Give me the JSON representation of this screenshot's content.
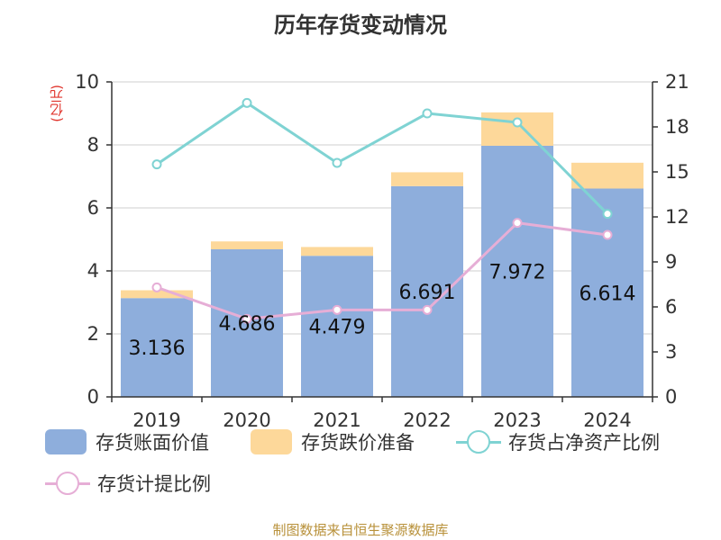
{
  "title": "历年存货变动情况",
  "unit_label": "(亿元)",
  "source": "制图数据来自恒生聚源数据库",
  "colors": {
    "book_value": "#8eaedc",
    "impairment": "#fdd89a",
    "ratio_net_assets": "#7fd3d3",
    "provision_ratio": "#e6aed6",
    "unit_text": "#e0342c",
    "source_text": "#b8913a"
  },
  "legend": [
    {
      "label": "存货账面价值",
      "kind": "swatch",
      "color_key": "book_value"
    },
    {
      "label": "存货跌价准备",
      "kind": "swatch",
      "color_key": "impairment"
    },
    {
      "label": "存货占净资产比例",
      "kind": "line",
      "color_key": "ratio_net_assets"
    },
    {
      "label": "存货计提比例",
      "kind": "line",
      "color_key": "provision_ratio"
    }
  ],
  "chart_data": {
    "type": "bar",
    "categories": [
      "2019",
      "2020",
      "2021",
      "2022",
      "2023",
      "2024"
    ],
    "y_left": {
      "min": 0,
      "max": 10,
      "ticks": [
        0,
        2,
        4,
        6,
        8,
        10
      ]
    },
    "y_right": {
      "min": 0,
      "max": 21,
      "ticks": [
        0,
        3,
        6,
        9,
        12,
        15,
        18,
        21
      ]
    },
    "grid": true,
    "bar_series": [
      {
        "name": "存货账面价值",
        "values": [
          3.136,
          4.686,
          4.479,
          6.691,
          7.972,
          6.614
        ],
        "labels": [
          "3.136",
          "4.686",
          "4.479",
          "6.691",
          "7.972",
          "6.614"
        ]
      },
      {
        "name": "存货跌价准备",
        "values": [
          0.25,
          0.25,
          0.28,
          0.44,
          1.06,
          0.82
        ]
      }
    ],
    "line_series": [
      {
        "name": "存货占净资产比例",
        "axis": "right",
        "values": [
          15.5,
          19.6,
          15.6,
          18.9,
          18.3,
          12.2
        ]
      },
      {
        "name": "存货计提比例",
        "axis": "right",
        "values": [
          7.3,
          5.2,
          5.8,
          5.8,
          11.6,
          10.8
        ]
      }
    ]
  }
}
